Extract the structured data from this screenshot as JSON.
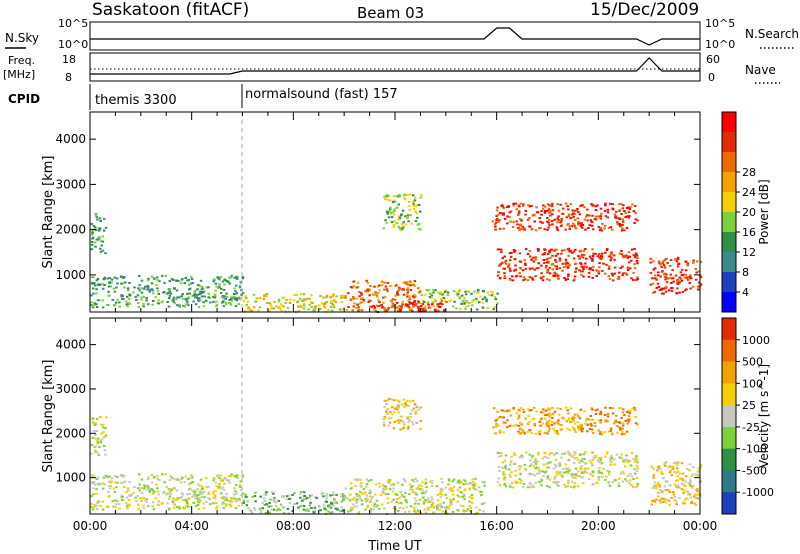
{
  "header": {
    "site": "Saskatoon (fitACF)",
    "beam": "Beam 03",
    "date": "15/Dec/2009"
  },
  "nsky_panel": {
    "left_label": "N.Sky",
    "right_label": "N.Search",
    "left_ticks": [
      "10^5",
      "10^0"
    ],
    "right_ticks": [
      "10^5",
      "10^0"
    ]
  },
  "freq_panel": {
    "left_label_1": "Freq.",
    "left_label_2": "[MHz]",
    "right_label": "Nave",
    "left_ticks": [
      "18",
      "8"
    ],
    "right_ticks": [
      "60",
      "0"
    ]
  },
  "cpid": {
    "label": "CPID",
    "modes": [
      {
        "name": "themis 3300",
        "start_hour": 0
      },
      {
        "name": "normalsound (fast) 157",
        "start_hour": 6
      }
    ]
  },
  "chart_data": [
    {
      "type": "heatmap",
      "name": "power",
      "xlabel": "",
      "ylabel": "Slant Range [km]",
      "xlim": [
        0,
        24
      ],
      "ylim": [
        180,
        4600
      ],
      "yticks": [
        "1000",
        "2000",
        "3000",
        "4000"
      ],
      "colorbar": {
        "label": "Power [dB]",
        "ticks": [
          "4",
          "8",
          "12",
          "16",
          "20",
          "24",
          "28"
        ],
        "colors": [
          "#0000ff",
          "#1f3fbf",
          "#3c8a8a",
          "#2f8f47",
          "#7fd13b",
          "#f5d000",
          "#f5a100",
          "#f06a00",
          "#e42a00",
          "#ff0000"
        ]
      },
      "regions": [
        {
          "x": [
            0.0,
            6.0
          ],
          "y": [
            300,
            1000
          ],
          "level": 3
        },
        {
          "x": [
            6.0,
            10.0
          ],
          "y": [
            200,
            600
          ],
          "level": 5
        },
        {
          "x": [
            10.0,
            13.0
          ],
          "y": [
            200,
            900
          ],
          "level": 7
        },
        {
          "x": [
            13.0,
            16.0
          ],
          "y": [
            250,
            700
          ],
          "level": 4
        },
        {
          "x": [
            11.0,
            14.0
          ],
          "y": [
            200,
            450
          ],
          "level": 8
        },
        {
          "x": [
            0.0,
            0.6
          ],
          "y": [
            1500,
            2400
          ],
          "level": 3
        },
        {
          "x": [
            11.5,
            13.0
          ],
          "y": [
            2000,
            2800
          ],
          "level": 4
        },
        {
          "x": [
            15.8,
            21.5
          ],
          "y": [
            2000,
            2600
          ],
          "level": 8
        },
        {
          "x": [
            16.0,
            21.5
          ],
          "y": [
            900,
            1600
          ],
          "level": 8
        },
        {
          "x": [
            22.0,
            24.0
          ],
          "y": [
            600,
            1400
          ],
          "level": 8
        }
      ]
    },
    {
      "type": "heatmap",
      "name": "velocity",
      "xlabel": "Time UT",
      "ylabel": "Slant Range [km]",
      "xlim": [
        0,
        24
      ],
      "ylim": [
        180,
        4600
      ],
      "xticks": [
        "00:00",
        "04:00",
        "08:00",
        "12:00",
        "16:00",
        "20:00",
        "00:00"
      ],
      "yticks": [
        "1000",
        "2000",
        "3000",
        "4000"
      ],
      "colorbar": {
        "label": "Velocity [m s^-1]",
        "ticks": [
          "1000",
          "500",
          "100",
          "25",
          "-25",
          "-100",
          "-500",
          "-1000"
        ],
        "colors": [
          "#1f3fbf",
          "#2f7a8a",
          "#2f8f47",
          "#7fd13b",
          "#c8c8c0",
          "#f5d000",
          "#f5a100",
          "#f06a00",
          "#e42a00"
        ]
      },
      "regions": [
        {
          "x": [
            0.0,
            6.0
          ],
          "y": [
            300,
            1100
          ],
          "level": 4
        },
        {
          "x": [
            6.0,
            10.0
          ],
          "y": [
            200,
            700
          ],
          "level": 3
        },
        {
          "x": [
            10.0,
            15.5
          ],
          "y": [
            200,
            1000
          ],
          "level": 4
        },
        {
          "x": [
            0.0,
            0.6
          ],
          "y": [
            1500,
            2400
          ],
          "level": 4
        },
        {
          "x": [
            11.5,
            13.0
          ],
          "y": [
            2100,
            2800
          ],
          "level": 5
        },
        {
          "x": [
            15.8,
            21.5
          ],
          "y": [
            2000,
            2600
          ],
          "level": 6
        },
        {
          "x": [
            16.0,
            21.5
          ],
          "y": [
            800,
            1600
          ],
          "level": 4
        },
        {
          "x": [
            22.0,
            24.0
          ],
          "y": [
            400,
            1400
          ],
          "level": 5
        }
      ]
    }
  ]
}
